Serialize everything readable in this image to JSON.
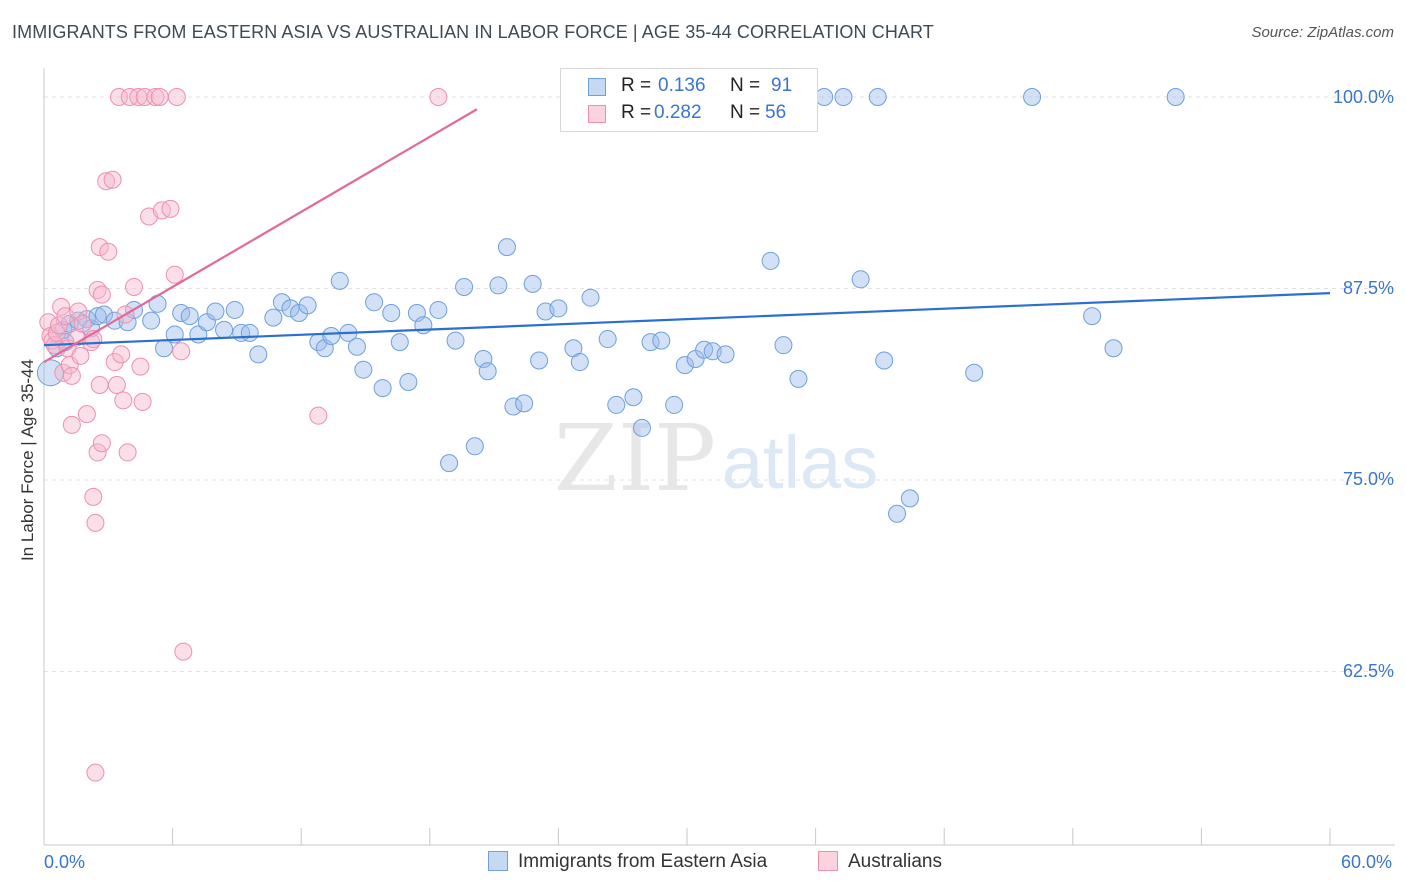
{
  "title": "IMMIGRANTS FROM EASTERN ASIA VS AUSTRALIAN IN LABOR FORCE | AGE 35-44 CORRELATION CHART",
  "source": "Source: ZipAtlas.com",
  "legend": {
    "rows": [
      {
        "r_label": "R =",
        "r_value": "0.136",
        "n_label": "N =",
        "n_value": "91",
        "color": "#9bbdea",
        "border": "#6f9fdc"
      },
      {
        "r_label": "R =",
        "r_value": "0.282",
        "n_label": "N =",
        "n_value": "56",
        "color": "#f7b7cb",
        "border": "#ef8fad"
      }
    ]
  },
  "bottom_legend": {
    "series1": "Immigrants from Eastern Asia",
    "series2": "Australians"
  },
  "y_axis_title": "In Labor Force | Age 35-44",
  "x_axis": {
    "min_label": "0.0%",
    "max_label": "60.0%"
  },
  "y_ticks": [
    "100.0%",
    "87.5%",
    "75.0%",
    "62.5%"
  ],
  "watermark": {
    "left": "ZIP",
    "right": "atlas"
  },
  "chart_data": {
    "type": "scatter",
    "xlabel": "",
    "ylabel": "In Labor Force | Age 35-44",
    "xlim": [
      0,
      60
    ],
    "ylim": [
      50,
      100
    ],
    "grid_y": [
      100,
      87.5,
      75,
      62.5
    ],
    "series": [
      {
        "name": "Immigrants from Eastern Asia",
        "color": "#6f9fdc",
        "fill": "rgba(155,189,234,0.45)",
        "trend": {
          "x": [
            0,
            60
          ],
          "y": [
            83.8,
            87.2
          ]
        },
        "points": [
          [
            0.3,
            82.0
          ],
          [
            0.6,
            83.6
          ],
          [
            0.9,
            84.8
          ],
          [
            1.2,
            85.2
          ],
          [
            1.6,
            85.4
          ],
          [
            2.0,
            85.5
          ],
          [
            2.2,
            84.9
          ],
          [
            2.5,
            85.7
          ],
          [
            2.8,
            85.8
          ],
          [
            3.3,
            85.4
          ],
          [
            3.9,
            85.3
          ],
          [
            4.2,
            86.1
          ],
          [
            5.0,
            85.4
          ],
          [
            5.3,
            86.5
          ],
          [
            5.6,
            83.6
          ],
          [
            6.1,
            84.5
          ],
          [
            6.4,
            85.9
          ],
          [
            6.8,
            85.7
          ],
          [
            7.2,
            84.5
          ],
          [
            7.6,
            85.3
          ],
          [
            8.0,
            86.0
          ],
          [
            8.4,
            84.8
          ],
          [
            8.9,
            86.1
          ],
          [
            9.2,
            84.6
          ],
          [
            9.6,
            84.6
          ],
          [
            10.0,
            83.2
          ],
          [
            10.7,
            85.6
          ],
          [
            11.1,
            86.6
          ],
          [
            11.5,
            86.2
          ],
          [
            11.9,
            85.9
          ],
          [
            12.3,
            86.4
          ],
          [
            12.8,
            84.0
          ],
          [
            13.1,
            83.6
          ],
          [
            13.4,
            84.4
          ],
          [
            13.8,
            88.0
          ],
          [
            14.2,
            84.6
          ],
          [
            14.6,
            83.7
          ],
          [
            14.9,
            82.2
          ],
          [
            15.4,
            86.6
          ],
          [
            15.8,
            81.0
          ],
          [
            16.2,
            85.9
          ],
          [
            16.6,
            84.0
          ],
          [
            17.0,
            81.4
          ],
          [
            17.4,
            85.9
          ],
          [
            17.7,
            85.1
          ],
          [
            18.4,
            86.1
          ],
          [
            18.9,
            76.1
          ],
          [
            19.2,
            84.1
          ],
          [
            19.6,
            87.6
          ],
          [
            20.1,
            77.2
          ],
          [
            20.5,
            82.9
          ],
          [
            20.7,
            82.1
          ],
          [
            21.2,
            87.7
          ],
          [
            21.6,
            90.2
          ],
          [
            21.9,
            79.8
          ],
          [
            22.4,
            80.0
          ],
          [
            22.8,
            87.8
          ],
          [
            23.1,
            82.8
          ],
          [
            23.4,
            86.0
          ],
          [
            24.0,
            86.2
          ],
          [
            24.7,
            83.6
          ],
          [
            25.0,
            82.7
          ],
          [
            25.5,
            86.9
          ],
          [
            26.3,
            84.2
          ],
          [
            26.7,
            79.9
          ],
          [
            27.5,
            80.4
          ],
          [
            27.9,
            78.4
          ],
          [
            28.3,
            84.0
          ],
          [
            28.8,
            84.1
          ],
          [
            29.4,
            79.9
          ],
          [
            29.9,
            82.5
          ],
          [
            30.4,
            82.9
          ],
          [
            30.8,
            83.5
          ],
          [
            31.2,
            83.4
          ],
          [
            31.8,
            83.2
          ],
          [
            33.9,
            89.3
          ],
          [
            34.5,
            83.8
          ],
          [
            35.2,
            81.6
          ],
          [
            36.4,
            100.0
          ],
          [
            37.3,
            100.0
          ],
          [
            38.1,
            88.1
          ],
          [
            38.9,
            100.0
          ],
          [
            39.2,
            82.8
          ],
          [
            39.8,
            72.8
          ],
          [
            40.4,
            73.8
          ],
          [
            43.4,
            82.0
          ],
          [
            46.1,
            100.0
          ],
          [
            48.9,
            85.7
          ],
          [
            49.9,
            83.6
          ],
          [
            52.8,
            100.0
          ],
          [
            1.0,
            84.0
          ]
        ]
      },
      {
        "name": "Australians",
        "color": "#ef8fad",
        "fill": "rgba(247,183,203,0.45)",
        "trend": {
          "x": [
            0,
            20.2
          ],
          "y": [
            82.7,
            99.2
          ]
        },
        "points": [
          [
            0.2,
            85.3
          ],
          [
            0.3,
            84.4
          ],
          [
            0.4,
            84.1
          ],
          [
            0.5,
            83.8
          ],
          [
            0.6,
            84.6
          ],
          [
            0.7,
            85.1
          ],
          [
            0.8,
            86.3
          ],
          [
            0.9,
            82.0
          ],
          [
            1.0,
            85.7
          ],
          [
            1.1,
            83.6
          ],
          [
            1.2,
            82.5
          ],
          [
            1.3,
            78.6
          ],
          [
            1.3,
            81.8
          ],
          [
            1.5,
            84.3
          ],
          [
            1.6,
            86.0
          ],
          [
            1.7,
            83.1
          ],
          [
            1.8,
            85.2
          ],
          [
            2.0,
            79.3
          ],
          [
            2.2,
            84.0
          ],
          [
            2.3,
            73.9
          ],
          [
            2.4,
            72.2
          ],
          [
            2.5,
            87.4
          ],
          [
            2.6,
            81.2
          ],
          [
            2.3,
            84.2
          ],
          [
            2.4,
            55.9
          ],
          [
            2.5,
            76.8
          ],
          [
            2.6,
            90.2
          ],
          [
            2.7,
            87.1
          ],
          [
            2.7,
            77.4
          ],
          [
            2.9,
            94.5
          ],
          [
            3.0,
            89.9
          ],
          [
            3.2,
            94.6
          ],
          [
            3.3,
            82.7
          ],
          [
            3.4,
            81.2
          ],
          [
            3.6,
            83.2
          ],
          [
            3.7,
            80.2
          ],
          [
            3.8,
            85.8
          ],
          [
            3.5,
            100.0
          ],
          [
            3.9,
            76.8
          ],
          [
            4.0,
            100.0
          ],
          [
            4.2,
            87.6
          ],
          [
            4.4,
            100.0
          ],
          [
            4.5,
            82.4
          ],
          [
            4.6,
            80.1
          ],
          [
            4.7,
            100.0
          ],
          [
            4.9,
            92.2
          ],
          [
            5.2,
            100.0
          ],
          [
            5.4,
            100.0
          ],
          [
            5.5,
            92.6
          ],
          [
            5.9,
            92.7
          ],
          [
            6.1,
            88.4
          ],
          [
            6.4,
            83.4
          ],
          [
            6.5,
            63.8
          ],
          [
            6.2,
            100.0
          ],
          [
            12.8,
            79.2
          ],
          [
            18.4,
            100.0
          ]
        ]
      }
    ]
  }
}
